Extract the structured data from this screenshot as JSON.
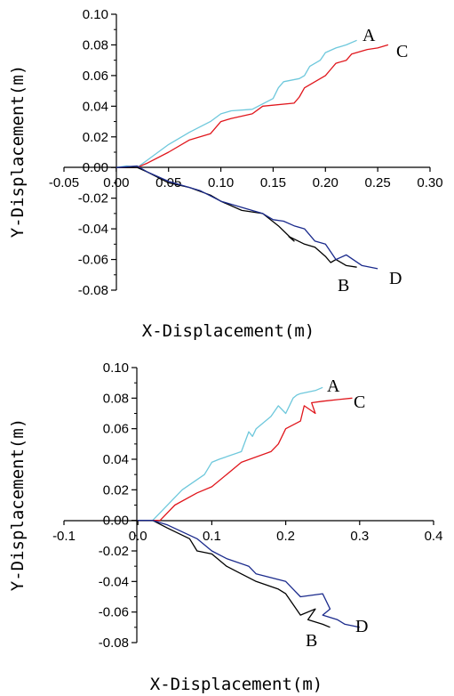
{
  "colors": {
    "A": "#6ec8dc",
    "B": "#000000",
    "C": "#e0161c",
    "D": "#1a2a8c"
  },
  "chart_data": [
    {
      "type": "line",
      "xlabel": "X-Displacement(m)",
      "ylabel": "Y-Displacement(m)",
      "xlim": [
        -0.05,
        0.3
      ],
      "ylim": [
        -0.08,
        0.1
      ],
      "xticks": [
        "-0.05",
        "0.00",
        "0.05",
        "0.10",
        "0.15",
        "0.20",
        "0.25",
        "0.30"
      ],
      "yticks": [
        "-0.08",
        "-0.06",
        "-0.04",
        "-0.02",
        "0.00",
        "0.02",
        "0.04",
        "0.06",
        "0.08",
        "0.10"
      ],
      "series": [
        {
          "name": "A",
          "color": "#6ec8dc",
          "x": [
            0.0,
            0.01,
            0.02,
            0.03,
            0.05,
            0.07,
            0.09,
            0.1,
            0.11,
            0.13,
            0.15,
            0.155,
            0.16,
            0.175,
            0.18,
            0.185,
            0.195,
            0.2,
            0.21,
            0.22,
            0.23
          ],
          "y": [
            0.0,
            0.001,
            0.0,
            0.005,
            0.015,
            0.023,
            0.03,
            0.035,
            0.037,
            0.038,
            0.045,
            0.052,
            0.056,
            0.058,
            0.06,
            0.066,
            0.07,
            0.075,
            0.078,
            0.08,
            0.083
          ]
        },
        {
          "name": "C",
          "color": "#e0161c",
          "x": [
            0.0,
            0.02,
            0.03,
            0.05,
            0.07,
            0.09,
            0.1,
            0.11,
            0.13,
            0.14,
            0.17,
            0.175,
            0.18,
            0.2,
            0.205,
            0.21,
            0.22,
            0.225,
            0.24,
            0.25,
            0.26
          ],
          "y": [
            0.0,
            0.0,
            0.003,
            0.01,
            0.018,
            0.022,
            0.03,
            0.032,
            0.035,
            0.04,
            0.042,
            0.046,
            0.052,
            0.06,
            0.064,
            0.068,
            0.07,
            0.074,
            0.077,
            0.078,
            0.08
          ]
        },
        {
          "name": "B",
          "color": "#000000",
          "x": [
            0.0,
            0.02,
            0.03,
            0.05,
            0.07,
            0.09,
            0.1,
            0.12,
            0.14,
            0.155,
            0.17,
            0.165,
            0.18,
            0.19,
            0.2,
            0.205,
            0.21,
            0.22,
            0.23
          ],
          "y": [
            0.0,
            0.0,
            -0.003,
            -0.01,
            -0.013,
            -0.018,
            -0.022,
            -0.028,
            -0.03,
            -0.038,
            -0.048,
            -0.045,
            -0.05,
            -0.052,
            -0.058,
            -0.062,
            -0.06,
            -0.064,
            -0.065
          ]
        },
        {
          "name": "D",
          "color": "#1a2a8c",
          "x": [
            0.0,
            0.02,
            0.03,
            0.05,
            0.08,
            0.1,
            0.12,
            0.14,
            0.15,
            0.16,
            0.17,
            0.18,
            0.19,
            0.2,
            0.205,
            0.21,
            0.22,
            0.235,
            0.25
          ],
          "y": [
            0.0,
            0.001,
            -0.003,
            -0.009,
            -0.015,
            -0.022,
            -0.026,
            -0.03,
            -0.034,
            -0.035,
            -0.038,
            -0.04,
            -0.048,
            -0.05,
            -0.055,
            -0.06,
            -0.057,
            -0.064,
            -0.066
          ]
        }
      ],
      "curve_labels": [
        "A",
        "C",
        "B",
        "D"
      ]
    },
    {
      "type": "line",
      "xlabel": "X-Displacement(m)",
      "ylabel": "Y-Displacement(m)",
      "xlim": [
        -0.1,
        0.4
      ],
      "ylim": [
        -0.08,
        0.1
      ],
      "xticks": [
        "-0.1",
        "0.0",
        "0.1",
        "0.2",
        "0.3",
        "0.4"
      ],
      "yticks": [
        "-0.08",
        "-0.06",
        "-0.04",
        "-0.02",
        "0.00",
        "0.02",
        "0.04",
        "0.06",
        "0.08",
        "0.10"
      ],
      "series": [
        {
          "name": "A",
          "color": "#6ec8dc",
          "x": [
            0.0,
            0.02,
            0.03,
            0.06,
            0.09,
            0.1,
            0.11,
            0.14,
            0.15,
            0.155,
            0.16,
            0.18,
            0.19,
            0.2,
            0.21,
            0.215,
            0.22,
            0.24,
            0.25
          ],
          "y": [
            0.0,
            0.0,
            0.005,
            0.02,
            0.03,
            0.038,
            0.04,
            0.045,
            0.058,
            0.055,
            0.06,
            0.068,
            0.075,
            0.07,
            0.08,
            0.082,
            0.083,
            0.085,
            0.087
          ]
        },
        {
          "name": "C",
          "color": "#e0161c",
          "x": [
            0.0,
            0.03,
            0.05,
            0.08,
            0.1,
            0.12,
            0.14,
            0.18,
            0.19,
            0.2,
            0.22,
            0.225,
            0.24,
            0.235,
            0.25,
            0.27,
            0.29
          ],
          "y": [
            0.0,
            0.0,
            0.01,
            0.018,
            0.022,
            0.03,
            0.038,
            0.045,
            0.05,
            0.06,
            0.065,
            0.075,
            0.07,
            0.077,
            0.078,
            0.079,
            0.08
          ]
        },
        {
          "name": "B",
          "color": "#000000",
          "x": [
            0.0,
            0.02,
            0.04,
            0.07,
            0.08,
            0.1,
            0.12,
            0.14,
            0.16,
            0.19,
            0.2,
            0.21,
            0.22,
            0.24,
            0.23,
            0.25,
            0.26
          ],
          "y": [
            0.0,
            0.0,
            -0.005,
            -0.012,
            -0.02,
            -0.022,
            -0.03,
            -0.035,
            -0.04,
            -0.045,
            -0.048,
            -0.055,
            -0.062,
            -0.058,
            -0.065,
            -0.068,
            -0.07
          ]
        },
        {
          "name": "D",
          "color": "#1a2a8c",
          "x": [
            0.0,
            0.02,
            0.04,
            0.08,
            0.1,
            0.12,
            0.15,
            0.16,
            0.2,
            0.21,
            0.22,
            0.25,
            0.26,
            0.25,
            0.27,
            0.28,
            0.3
          ],
          "y": [
            0.0,
            0.0,
            -0.003,
            -0.012,
            -0.02,
            -0.025,
            -0.03,
            -0.035,
            -0.04,
            -0.045,
            -0.05,
            -0.048,
            -0.058,
            -0.062,
            -0.065,
            -0.068,
            -0.07
          ]
        }
      ],
      "curve_labels": [
        "A",
        "C",
        "B",
        "D"
      ]
    }
  ]
}
